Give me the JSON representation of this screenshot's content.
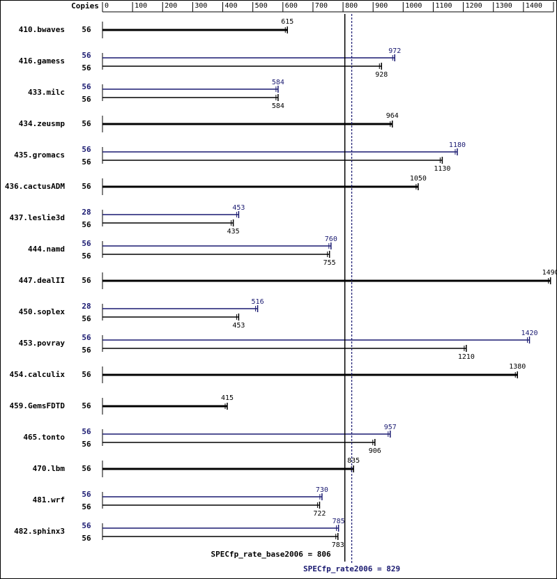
{
  "chart_data": {
    "type": "hbar",
    "copies_label": "Copies",
    "xlim": [
      0,
      1500
    ],
    "xticks": [
      0,
      100,
      200,
      300,
      400,
      500,
      600,
      700,
      800,
      900,
      1000,
      1100,
      1200,
      1300,
      1400,
      1500
    ],
    "categories": [
      "410.bwaves",
      "416.gamess",
      "433.milc",
      "434.zeusmp",
      "435.gromacs",
      "436.cactusADM",
      "437.leslie3d",
      "444.namd",
      "447.dealII",
      "450.soplex",
      "453.povray",
      "454.calculix",
      "459.GemsFDTD",
      "465.tonto",
      "470.lbm",
      "481.wrf",
      "482.sphinx3"
    ],
    "series": [
      {
        "color": "#000000",
        "copies": [
          56,
          56,
          56,
          56,
          56,
          56,
          56,
          56,
          56,
          56,
          56,
          56,
          56,
          56,
          56,
          56,
          56
        ],
        "values": [
          615,
          928,
          584,
          964,
          1130,
          1050,
          435,
          755,
          1490,
          453,
          1210,
          1380,
          415,
          906,
          835,
          722,
          783
        ]
      },
      {
        "color": "#191970",
        "copies": [
          null,
          56,
          56,
          null,
          56,
          null,
          28,
          56,
          null,
          28,
          56,
          null,
          null,
          56,
          null,
          56,
          56
        ],
        "values": [
          null,
          972,
          584,
          null,
          1180,
          null,
          453,
          760,
          null,
          516,
          1420,
          null,
          null,
          957,
          null,
          730,
          785
        ]
      }
    ],
    "reference_lines": [
      {
        "label": "SPECfp_rate_base2006 = 806",
        "value": 806,
        "color": "#000000",
        "dashed": false
      },
      {
        "label": "SPECfp_rate2006 = 829",
        "value": 829,
        "color": "#191970",
        "dashed": true
      }
    ]
  }
}
